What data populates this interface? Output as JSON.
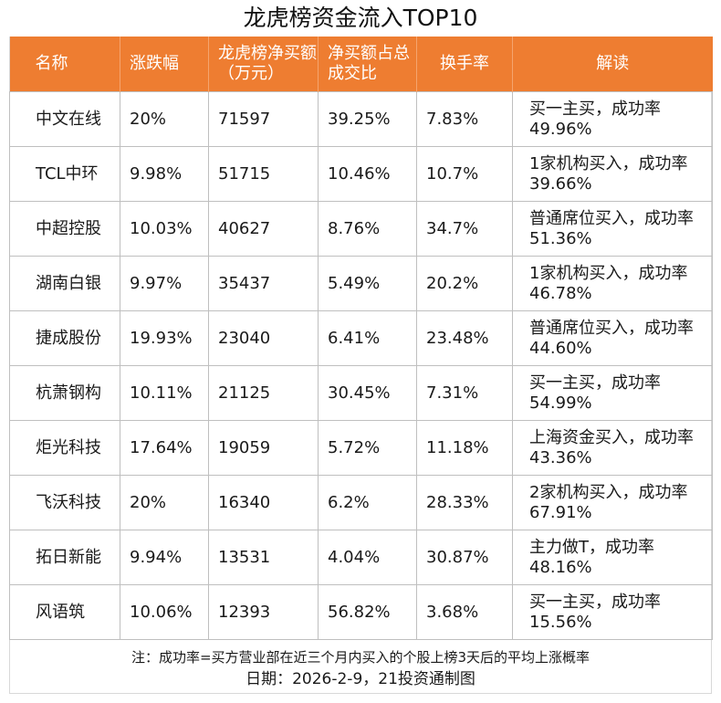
{
  "title": "龙虎榜资金流入TOP10",
  "colors": {
    "header_bg": "#ee7d31",
    "header_text": "#ffffff",
    "border": "#bfbfbf"
  },
  "headers": [
    "名称",
    "涨跌幅",
    "龙虎榜净买额（万元）",
    "净买额占总成交比",
    "换手率",
    "解读"
  ],
  "rows": [
    [
      "中文在线",
      "20%",
      "71597",
      "39.25%",
      "7.83%",
      "买一主买，成功率49.96%"
    ],
    [
      "TCL中环",
      "9.98%",
      "51715",
      "10.46%",
      "10.7%",
      "1家机构买入，成功率39.66%"
    ],
    [
      "中超控股",
      "10.03%",
      "40627",
      "8.76%",
      "34.7%",
      "普通席位买入，成功率51.36%"
    ],
    [
      "湖南白银",
      "9.97%",
      "35437",
      "5.49%",
      "20.2%",
      "1家机构买入，成功率46.78%"
    ],
    [
      "捷成股份",
      "19.93%",
      "23040",
      "6.41%",
      "23.48%",
      "普通席位买入，成功率44.60%"
    ],
    [
      "杭萧钢构",
      "10.11%",
      "21125",
      "30.45%",
      "7.31%",
      "买一主买，成功率54.99%"
    ],
    [
      "炬光科技",
      "17.64%",
      "19059",
      "5.72%",
      "11.18%",
      "上海资金买入，成功率43.36%"
    ],
    [
      "飞沃科技",
      "20%",
      "16340",
      "6.2%",
      "28.33%",
      "2家机构买入，成功率67.91%"
    ],
    [
      "拓日新能",
      "9.94%",
      "13531",
      "4.04%",
      "30.87%",
      "主力做T，成功率48.16%"
    ],
    [
      "风语筑",
      "10.06%",
      "12393",
      "56.82%",
      "3.68%",
      "买一主买，成功率15.56%"
    ]
  ],
  "note": "注：成功率=买方营业部在近三个月内买入的个股上榜3天后的平均上涨概率",
  "date_line": "日期：2026-2-9，21投资通制图"
}
